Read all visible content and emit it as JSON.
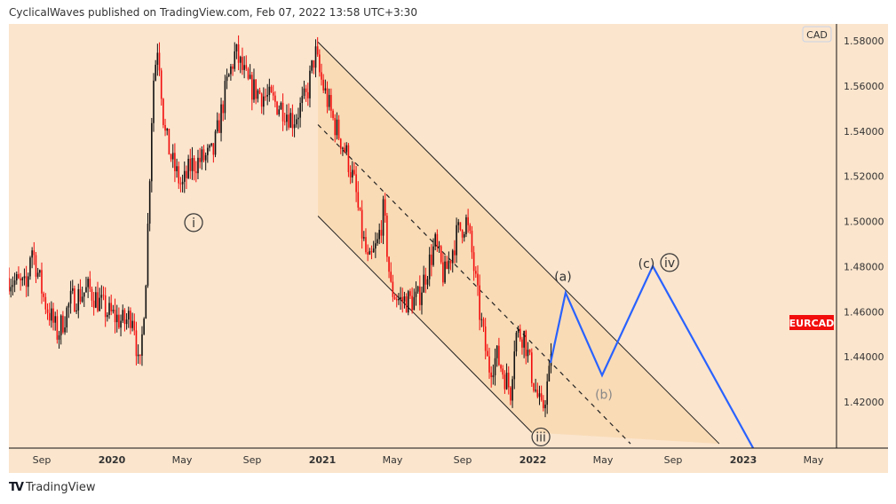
{
  "header": {
    "text": "CyclicalWaves published on TradingView.com, Feb 07, 2022 13:58 UTC+3:30"
  },
  "footer": {
    "brand": "TradingView",
    "logo_glyph": "TV"
  },
  "currency_badge": "CAD",
  "symbol_tag": {
    "label": "EURCAD",
    "color": "#f20d0d"
  },
  "chart_data": {
    "type": "candlestick",
    "symbol": "EURCAD",
    "x_unit": "months since Sep 2019",
    "ylim": [
      1.4,
      1.585
    ],
    "xlim": [
      -1.9,
      45.2
    ],
    "y_ticks": [
      "1.58000",
      "1.56000",
      "1.54000",
      "1.52000",
      "1.50000",
      "1.48000",
      "1.46000",
      "1.44000",
      "1.42000"
    ],
    "x_ticks": [
      {
        "m": 0,
        "label": "Sep",
        "bold": false
      },
      {
        "m": 4,
        "label": "2020",
        "bold": true
      },
      {
        "m": 8,
        "label": "May",
        "bold": false
      },
      {
        "m": 12,
        "label": "Sep",
        "bold": false
      },
      {
        "m": 16,
        "label": "2021",
        "bold": true
      },
      {
        "m": 20,
        "label": "May",
        "bold": false
      },
      {
        "m": 24,
        "label": "Sep",
        "bold": false
      },
      {
        "m": 28,
        "label": "2022",
        "bold": true
      },
      {
        "m": 32,
        "label": "May",
        "bold": false
      },
      {
        "m": 36,
        "label": "Sep",
        "bold": false
      },
      {
        "m": 40,
        "label": "2023",
        "bold": true
      },
      {
        "m": 44,
        "label": "May",
        "bold": false
      }
    ],
    "price_path": [
      [
        -1.87,
        1.475
      ],
      [
        -0.86,
        1.47
      ],
      [
        -0.61,
        1.49
      ],
      [
        0.15,
        1.465
      ],
      [
        0.91,
        1.45
      ],
      [
        1.67,
        1.465
      ],
      [
        2.68,
        1.47
      ],
      [
        3.7,
        1.46
      ],
      [
        4.71,
        1.455
      ],
      [
        5.22,
        1.46
      ],
      [
        5.57,
        1.43
      ],
      [
        5.97,
        1.48
      ],
      [
        6.33,
        1.56
      ],
      [
        6.63,
        1.58
      ],
      [
        6.99,
        1.54
      ],
      [
        7.49,
        1.525
      ],
      [
        8.0,
        1.515
      ],
      [
        8.51,
        1.525
      ],
      [
        9.77,
        1.53
      ],
      [
        10.53,
        1.56
      ],
      [
        11.04,
        1.575
      ],
      [
        11.8,
        1.56
      ],
      [
        12.81,
        1.555
      ],
      [
        13.82,
        1.55
      ],
      [
        14.33,
        1.545
      ],
      [
        15.09,
        1.555
      ],
      [
        15.59,
        1.575
      ],
      [
        15.85,
        1.565
      ],
      [
        16.61,
        1.545
      ],
      [
        17.37,
        1.53
      ],
      [
        17.87,
        1.515
      ],
      [
        18.13,
        1.5
      ],
      [
        18.63,
        1.48
      ],
      [
        19.14,
        1.49
      ],
      [
        19.49,
        1.505
      ],
      [
        19.9,
        1.47
      ],
      [
        20.41,
        1.465
      ],
      [
        21.42,
        1.465
      ],
      [
        22.43,
        1.49
      ],
      [
        22.94,
        1.475
      ],
      [
        23.7,
        1.495
      ],
      [
        24.2,
        1.5
      ],
      [
        24.46,
        1.49
      ],
      [
        24.96,
        1.46
      ],
      [
        25.47,
        1.435
      ],
      [
        25.97,
        1.44
      ],
      [
        26.73,
        1.425
      ],
      [
        26.99,
        1.45
      ],
      [
        27.49,
        1.45
      ],
      [
        28.0,
        1.43
      ],
      [
        28.51,
        1.415
      ],
      [
        29.01,
        1.435
      ],
      [
        29.11,
        1.462
      ]
    ],
    "last_price_label": "EURCAD",
    "channel": {
      "upper": [
        [
          15.75,
          1.5795
        ],
        [
          38.63,
          1.4015
        ]
      ],
      "lower": [
        [
          15.75,
          1.5024
        ],
        [
          27.95,
          1.4065
        ]
      ],
      "middle": [
        [
          15.75,
          1.5429
        ],
        [
          33.57,
          1.4015
        ]
      ]
    },
    "projection": [
      [
        29.01,
        1.4373
      ],
      [
        29.87,
        1.4684
      ],
      [
        31.95,
        1.4318
      ],
      [
        34.84,
        1.4802
      ],
      [
        40.56,
        1.3996
      ]
    ],
    "projection_color": "#2962ff",
    "wave_labels": [
      {
        "text": "i",
        "m": 8.66,
        "price": 1.4995,
        "circled": true
      },
      {
        "text": "iii",
        "m": 28.46,
        "price": 1.4045,
        "circled": true
      },
      {
        "text": "(a)",
        "m": 29.72,
        "price": 1.4756,
        "circled": false
      },
      {
        "text": "(b)",
        "m": 32.05,
        "price": 1.4234,
        "circled": false
      },
      {
        "text": "(c)",
        "m": 34.48,
        "price": 1.4814,
        "circled": false
      },
      {
        "text": "iv",
        "m": 35.8,
        "price": 1.4818,
        "circled": true
      }
    ]
  }
}
